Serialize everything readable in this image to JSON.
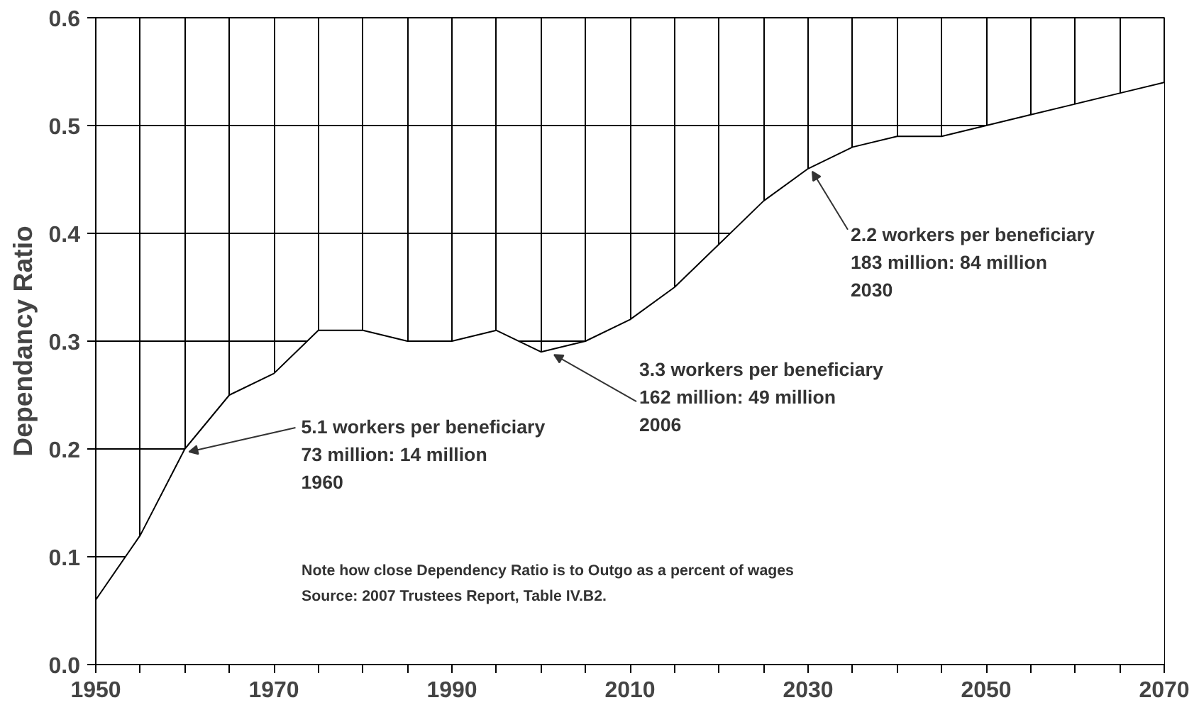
{
  "chart_data": {
    "type": "area",
    "ylabel": "Dependancy Ratio",
    "x": [
      1950,
      1955,
      1960,
      1965,
      1970,
      1975,
      1980,
      1985,
      1990,
      1995,
      2000,
      2005,
      2010,
      2015,
      2020,
      2025,
      2030,
      2035,
      2040,
      2045,
      2050,
      2055,
      2060,
      2065,
      2070
    ],
    "series": [
      {
        "color": "#ffffff",
        "values": [
          0.06,
          0.12,
          0.2,
          0.25,
          0.27,
          0.31,
          0.31,
          0.3,
          0.3,
          0.31,
          0.29,
          0.3,
          0.32,
          0.35,
          0.39,
          0.43,
          0.46,
          0.48,
          0.49,
          0.49,
          0.5,
          0.51,
          0.52,
          0.53,
          0.54
        ]
      }
    ],
    "xlim": [
      1950,
      2070
    ],
    "xticks": [
      1950,
      {
        "value": 1955,
        "label": null
      },
      {
        "value": 1960,
        "label": null
      },
      {
        "value": 1965,
        "label": null
      },
      1970,
      {
        "value": 1975,
        "label": null
      },
      {
        "value": 1980,
        "label": null
      },
      {
        "value": 1985,
        "label": null
      },
      1990,
      {
        "value": 1995,
        "label": null
      },
      {
        "value": 2000,
        "label": null
      },
      {
        "value": 2005,
        "label": null
      },
      2010,
      {
        "value": 2015,
        "label": null
      },
      {
        "value": 2020,
        "label": null
      },
      {
        "value": 2025,
        "label": null
      },
      2030,
      {
        "value": 2035,
        "label": null
      },
      {
        "value": 2040,
        "label": null
      },
      {
        "value": 2045,
        "label": null
      },
      2050,
      {
        "value": 2055,
        "label": null
      },
      {
        "value": 2060,
        "label": null
      },
      {
        "value": 2065,
        "label": null
      },
      2070
    ],
    "ylim": [
      0,
      0.6
    ],
    "yticks": [
      {
        "value": 0,
        "label": "0.0"
      },
      0.1,
      0.2,
      0.3,
      0.4,
      0.5,
      0.6
    ],
    "grid": true,
    "annotations": [
      {
        "text": "5.1 workers per beneficiary\n73 million: 14 million\n1960",
        "x": 1960,
        "y": 0.2
      },
      {
        "text": "3.3 workers per beneficiary\n162 million: 49 million\n2006",
        "x": 2001,
        "y": 0.29
      },
      {
        "text": "2.2 workers per beneficiary\n183 million: 84 million\n2030",
        "x": 2030,
        "y": 0.46
      },
      "Note  how  close Dependency Ratio is to Outgo as a percent of wages",
      "Source:  2007 Trustees Report, Table IV.B2."
    ]
  }
}
